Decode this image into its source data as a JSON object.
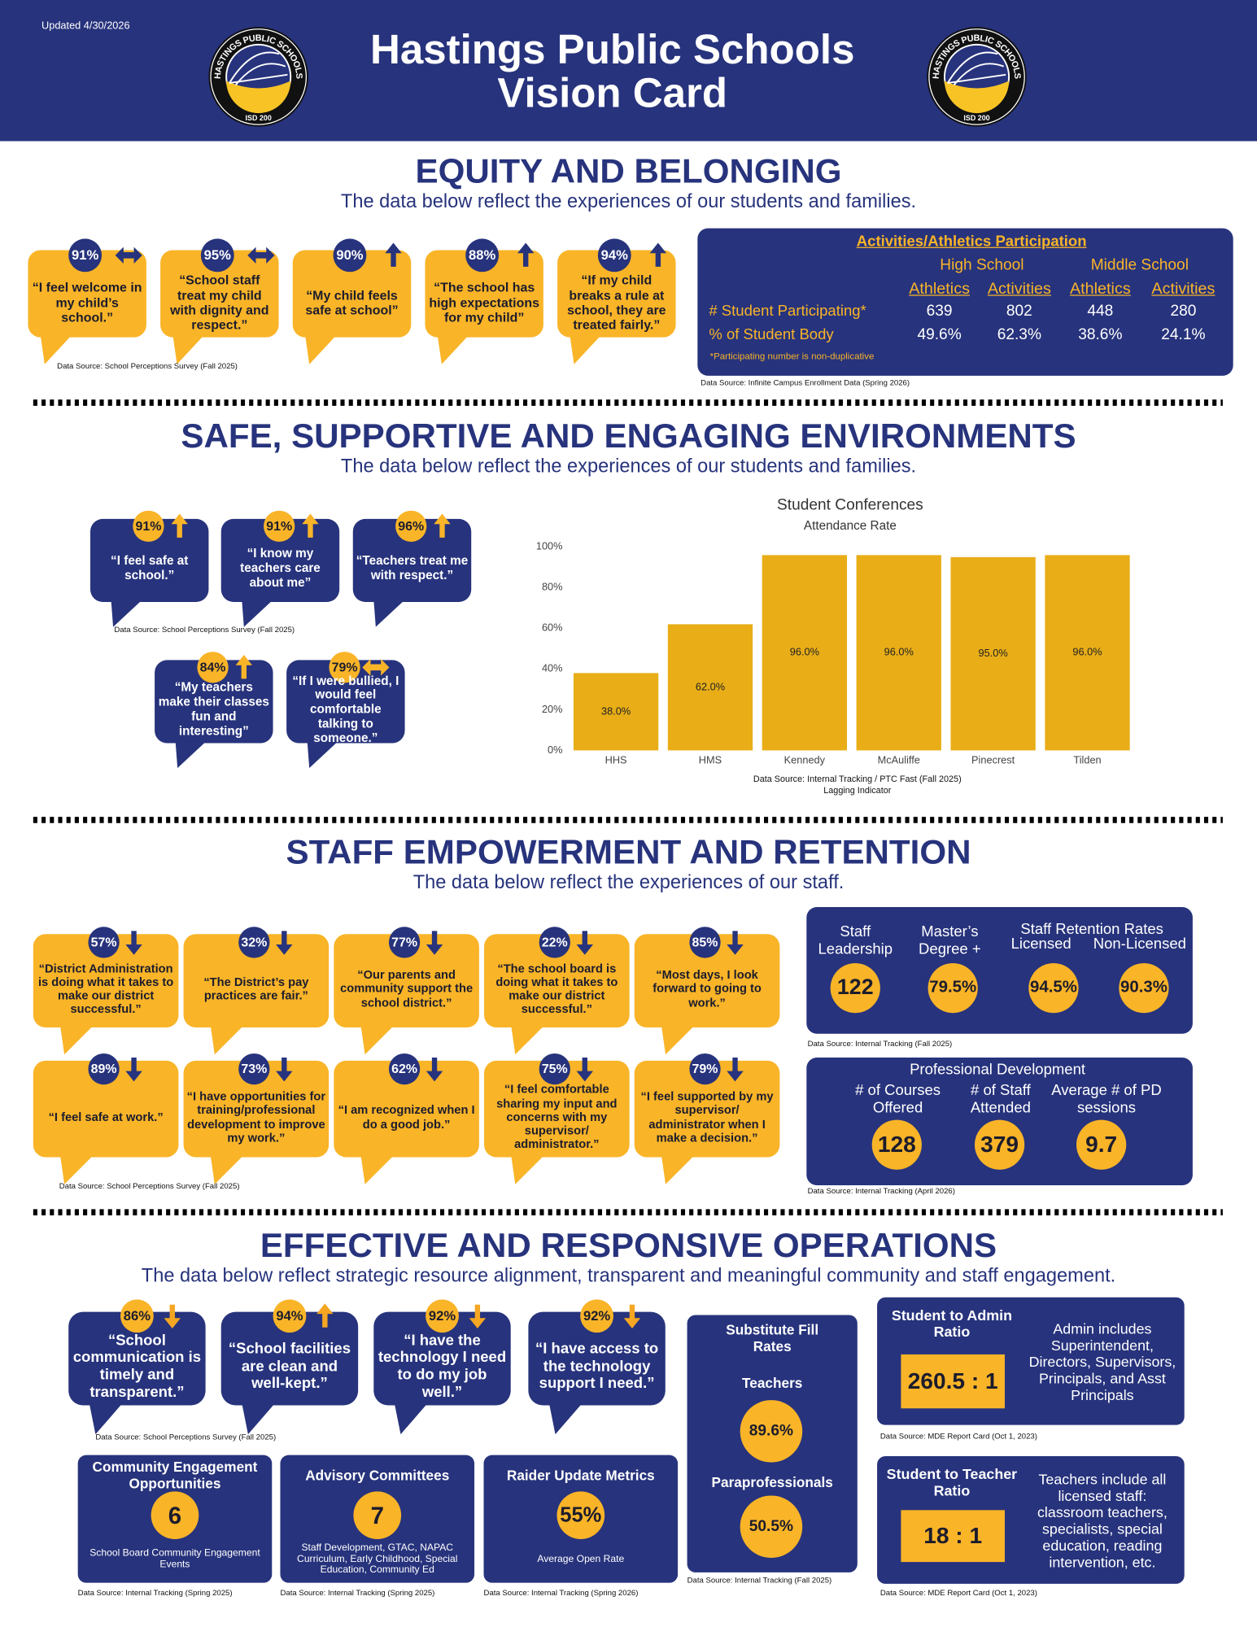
{
  "header": {
    "updated": "Updated 4/30/2026",
    "title_lines": [
      "Hastings Public Schools",
      "Vision Card"
    ],
    "logo": {
      "name": "HASTINGS PUBLIC SCHOOLS",
      "isd": "ISD 200"
    }
  },
  "equity": {
    "heading": "EQUITY AND BELONGING",
    "subtitle": "The data below reflect the experiences of our students and families.",
    "quotes": [
      {
        "percent": "91%",
        "arrow": "both",
        "text": "“I feel welcome in my child’s school.”"
      },
      {
        "percent": "95%",
        "arrow": "both",
        "text": "“School staff treat my child with dignity and respect.”"
      },
      {
        "percent": "90%",
        "arrow": "up",
        "text": "“My child feels safe at school”"
      },
      {
        "percent": "88%",
        "arrow": "up",
        "text": "“The school has high expectations for my child”"
      },
      {
        "percent": "94%",
        "arrow": "up",
        "text": "“If my child breaks a rule at school, they are treated fairly.”"
      }
    ],
    "quotes_source": "Data Source: School Perceptions Survey (Fall 2025)",
    "participation": {
      "title": "Activities/Athletics Participation",
      "groups": [
        "High School",
        "Middle School"
      ],
      "columns": [
        "Athletics",
        "Activities",
        "Athletics",
        "Activities"
      ],
      "rows": [
        {
          "label": "# Student Participating*",
          "cells": [
            "639",
            "802",
            "448",
            "280"
          ]
        },
        {
          "label": "% of Student Body",
          "cells": [
            "49.6%",
            "62.3%",
            "38.6%",
            "24.1%"
          ]
        }
      ],
      "note": "*Participating number is non-duplicative",
      "source": "Data Source: Infinite Campus Enrollment Data (Spring 2026)"
    }
  },
  "safe": {
    "heading": "SAFE, SUPPORTIVE AND ENGAGING ENVIRONMENTS",
    "subtitle": "The data below reflect the experiences of our students and families.",
    "quotes": [
      {
        "percent": "91%",
        "arrow": "up",
        "text": "“I feel safe at school.”"
      },
      {
        "percent": "91%",
        "arrow": "up",
        "text": "“I know my teachers care about me”"
      },
      {
        "percent": "96%",
        "arrow": "up",
        "text": "“Teachers treat me with respect.”"
      },
      {
        "percent": "84%",
        "arrow": "up",
        "text": "“My teachers make their classes fun and interesting”"
      },
      {
        "percent": "79%",
        "arrow": "both",
        "text": "“If I were bullied, I would feel comfortable talking to someone.”"
      }
    ],
    "quotes_source": "Data Source: School Perceptions Survey (Fall 2025)"
  },
  "chart_data": {
    "type": "bar",
    "title": "Student Conferences",
    "subtitle": "Attendance Rate",
    "categories": [
      "HHS",
      "HMS",
      "Kennedy",
      "McAuliffe",
      "Pinecrest",
      "Tilden"
    ],
    "values": [
      38,
      62,
      96,
      96,
      95,
      96
    ],
    "value_labels": [
      "38.0%",
      "62.0%",
      "96.0%",
      "96.0%",
      "95.0%",
      "96.0%"
    ],
    "color": "#e8ad17",
    "ylim": [
      0,
      100
    ],
    "yticks": [
      {
        "value": 0,
        "label": "0%"
      },
      {
        "value": 20,
        "label": "20%"
      },
      {
        "value": 40,
        "label": "40%"
      },
      {
        "value": 60,
        "label": "60%"
      },
      {
        "value": 80,
        "label": "80%"
      },
      {
        "value": 100,
        "label": "100%"
      }
    ],
    "grid": false,
    "source": "Data Source: Internal Tracking / PTC Fast (Fall 2025)",
    "note": "Lagging Indicator"
  },
  "staff": {
    "heading": "STAFF EMPOWERMENT AND RETENTION",
    "subtitle": "The data below reflect the experiences of our staff.",
    "quotes": [
      {
        "percent": "57%",
        "arrow": "down",
        "text": "“District Administration is doing what it takes to make our district successful.”"
      },
      {
        "percent": "32%",
        "arrow": "down",
        "text": "“The District’s pay practices are fair.”"
      },
      {
        "percent": "77%",
        "arrow": "down",
        "text": "“Our parents and community support the school district.”"
      },
      {
        "percent": "22%",
        "arrow": "down",
        "text": "“The school board is doing what it takes to make our district successful.”"
      },
      {
        "percent": "85%",
        "arrow": "down",
        "text": "“Most days, I look forward to going to work.”"
      },
      {
        "percent": "89%",
        "arrow": "down",
        "text": "“I feel safe at work.”"
      },
      {
        "percent": "73%",
        "arrow": "down",
        "text": "“I have opportunities for training/professional development to improve my work.”"
      },
      {
        "percent": "62%",
        "arrow": "down",
        "text": "“I am recognized when I do a good job.”"
      },
      {
        "percent": "75%",
        "arrow": "down",
        "text": "“I feel comfortable sharing my input and concerns with my supervisor/ administrator.”"
      },
      {
        "percent": "79%",
        "arrow": "down",
        "text": "“I feel supported by my supervisor/ administrator when I make a decision.”"
      }
    ],
    "quotes_source": "Data Source: School Perceptions Survey (Fall 2025)",
    "retention": {
      "group_label": "Staff Retention Rates",
      "items": [
        {
          "label": "Staff Leadership",
          "value": "122"
        },
        {
          "label": "Master’s Degree +",
          "value": "79.5%"
        },
        {
          "label": "Licensed",
          "value": "94.5%"
        },
        {
          "label": "Non-Licensed",
          "value": "90.3%"
        }
      ],
      "source": "Data Source: Internal Tracking (Fall 2025)"
    },
    "pd": {
      "title": "Professional Development",
      "items": [
        {
          "label": "# of Courses Offered",
          "value": "128"
        },
        {
          "label": "# of Staff Attended",
          "value": "379"
        },
        {
          "label": "Average # of PD sessions",
          "value": "9.7"
        }
      ],
      "source": "Data Source: Internal Tracking (April 2026)"
    }
  },
  "operations": {
    "heading": "EFFECTIVE AND RESPONSIVE OPERATIONS",
    "subtitle": "The data below reflect strategic resource alignment, transparent and meaningful community and staff engagement.",
    "quotes": [
      {
        "percent": "86%",
        "arrow": "down",
        "text": "“School communication is timely and transparent.”"
      },
      {
        "percent": "94%",
        "arrow": "up",
        "text": "“School facilities are clean and well-kept.”"
      },
      {
        "percent": "92%",
        "arrow": "down",
        "text": "“I have the technology I need to do my job well.”"
      },
      {
        "percent": "92%",
        "arrow": "down",
        "text": "“I have access to the technology support I need.”"
      }
    ],
    "quotes_source": "Data Source: School Perceptions Survey (Fall 2025)",
    "boxes": [
      {
        "title": "Community Engagement Opportunities",
        "value": "6",
        "caption": "School Board Community Engagement Events",
        "source": "Data Source: Internal Tracking (Spring 2025)"
      },
      {
        "title": "Advisory Committees",
        "value": "7",
        "caption": "Staff Development, GTAC, NAPAC Curriculum, Early Childhood, Special Education, Community Ed",
        "source": "Data Source: Internal Tracking (Spring 2025)"
      },
      {
        "title": "Raider Update Metrics",
        "value": "55%",
        "caption": "Average Open Rate",
        "source": "Data Source: Internal Tracking (Spring 2026)"
      }
    ],
    "substitute": {
      "title": "Substitute Fill Rates",
      "items": [
        {
          "label": "Teachers",
          "value": "89.6%"
        },
        {
          "label": "Paraprofessionals",
          "value": "50.5%"
        }
      ],
      "source": "Data Source: Internal Tracking (Fall 2025)"
    },
    "ratios": [
      {
        "title": "Student to Admin Ratio",
        "value": "260.5 : 1",
        "note": "Admin includes Superintendent, Directors, Supervisors, Principals, and Asst Principals",
        "source": "Data Source: MDE Report Card (Oct 1, 2023)"
      },
      {
        "title": "Student to Teacher Ratio",
        "value": "18 : 1",
        "note": "Teachers include all licensed staff: classroom teachers, specialists, special education, reading intervention, etc.",
        "source": "Data Source: MDE Report Card (Oct 1, 2023)"
      }
    ]
  }
}
